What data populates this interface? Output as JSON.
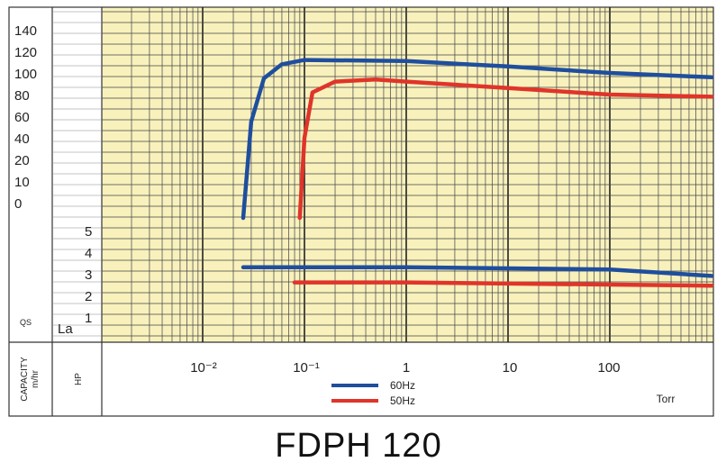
{
  "title": "FDPH 120",
  "left_labels": {
    "capacity": "CAPACITY",
    "capacity_unit": "m/hr",
    "hp": "HP",
    "qs": "QS",
    "la": "La"
  },
  "chart_data": {
    "type": "line",
    "title": "FDPH 120",
    "x_scale": "log",
    "x_unit": "Torr",
    "x_tick_labels": [
      "10⁻²",
      "10⁻¹",
      "1",
      "10",
      "100"
    ],
    "x_tick_values": [
      0.01,
      0.1,
      1,
      10,
      100
    ],
    "x_range": [
      0.002,
      1000
    ],
    "capacity_axis": {
      "label": "QS",
      "tick_labels": [
        "140",
        "120",
        "100",
        "80",
        "60",
        "40",
        "20",
        "10",
        "0"
      ],
      "range": [
        0,
        140
      ]
    },
    "hp_axis": {
      "label": "La",
      "tick_labels": [
        "5",
        "4",
        "3",
        "2",
        "1"
      ],
      "range": [
        0,
        5
      ]
    },
    "grid": true,
    "legend": {
      "placement": "bottom-center",
      "entries": [
        "60Hz",
        "50Hz"
      ]
    },
    "series": [
      {
        "name": "60Hz",
        "color": "#1f4e9e",
        "capacity_points": [
          [
            0.025,
            0
          ],
          [
            0.03,
            55
          ],
          [
            0.04,
            95
          ],
          [
            0.06,
            108
          ],
          [
            0.1,
            112
          ],
          [
            1,
            111
          ],
          [
            10,
            106
          ],
          [
            100,
            100
          ],
          [
            1000,
            96
          ]
        ],
        "hp_points": [
          [
            0.025,
            3.3
          ],
          [
            1,
            3.3
          ],
          [
            100,
            3.2
          ],
          [
            1000,
            2.9
          ]
        ]
      },
      {
        "name": "50Hz",
        "color": "#e0342a",
        "capacity_points": [
          [
            0.09,
            0
          ],
          [
            0.1,
            40
          ],
          [
            0.12,
            82
          ],
          [
            0.2,
            92
          ],
          [
            0.5,
            94
          ],
          [
            1,
            92
          ],
          [
            10,
            86
          ],
          [
            100,
            80
          ],
          [
            1000,
            78
          ]
        ],
        "hp_points": [
          [
            0.08,
            2.6
          ],
          [
            1,
            2.6
          ],
          [
            100,
            2.5
          ],
          [
            1000,
            2.45
          ]
        ]
      }
    ]
  }
}
